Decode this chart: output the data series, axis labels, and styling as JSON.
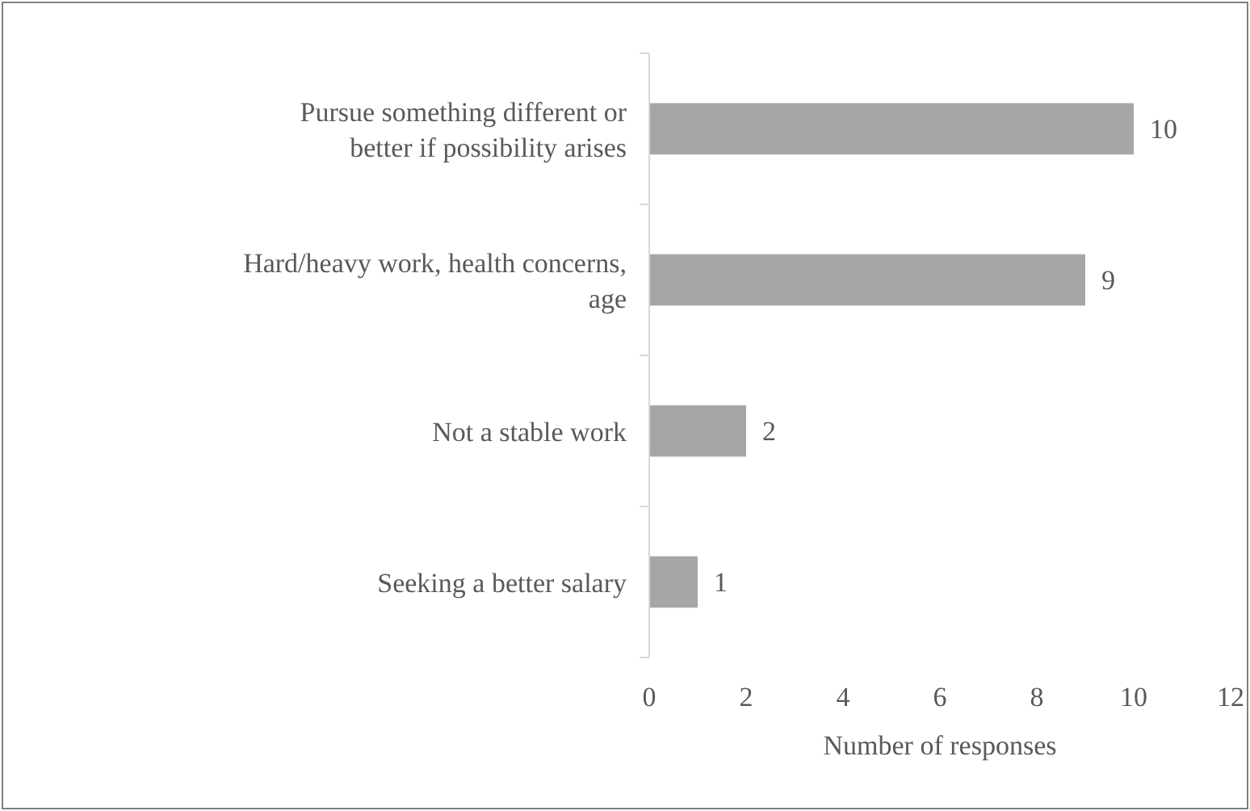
{
  "chart_data": {
    "type": "bar",
    "orientation": "horizontal",
    "xlabel": "Number of responses",
    "categories": [
      "Pursue something different or better if possibility arises",
      "Hard/heavy work, health concerns, age",
      "Not a stable work",
      "Seeking a better salary"
    ],
    "values": [
      10,
      9,
      2,
      1
    ],
    "color": "#a6a6a6",
    "xlim": [
      0,
      12
    ],
    "xticks": [
      0,
      2,
      4,
      6,
      8,
      10,
      12
    ],
    "grid": false,
    "data_labels": true
  }
}
